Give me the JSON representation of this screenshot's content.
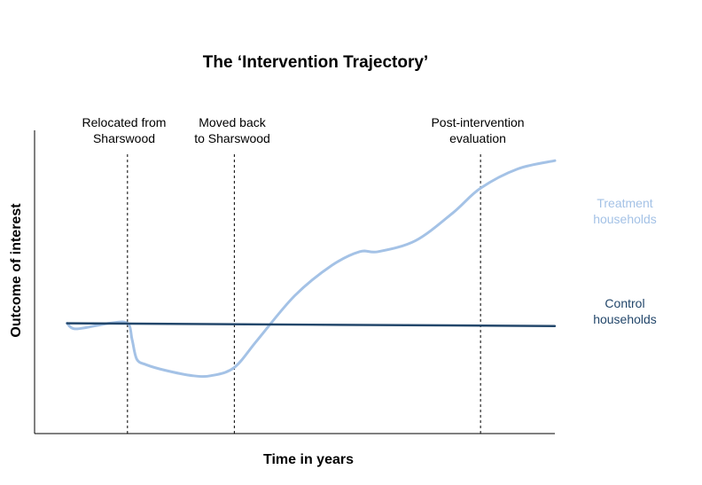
{
  "chart_data": {
    "type": "line",
    "title": "The ‘Intervention Trajectory’",
    "xlabel": "Time in years",
    "ylabel": "Outcome of interest",
    "grid": false,
    "legend": "right",
    "annotations": [
      {
        "label": "Relocated from\nSharswood",
        "x": 1.0
      },
      {
        "label": "Moved back\nto Sharswood",
        "x": 2.15
      },
      {
        "label": "Post-intervention\nevaluation",
        "x": 4.8
      }
    ],
    "series": [
      {
        "name": "Treatment\nhouseholds",
        "color": "#a4c2e6",
        "x": [
          0.35,
          0.45,
          0.8,
          1.0,
          1.05,
          1.1,
          1.2,
          1.4,
          1.7,
          1.9,
          2.15,
          2.4,
          2.8,
          3.2,
          3.5,
          3.7,
          4.1,
          4.5,
          4.8,
          5.2,
          5.6
        ],
        "y": [
          0.0,
          -0.1,
          0.0,
          0.0,
          -0.3,
          -0.65,
          -0.75,
          -0.85,
          -0.95,
          -0.95,
          -0.8,
          -0.3,
          0.5,
          1.05,
          1.3,
          1.3,
          1.5,
          2.0,
          2.45,
          2.8,
          2.95
        ]
      },
      {
        "name": "Control\nhouseholds",
        "color": "#23476b",
        "x": [
          0.35,
          5.6
        ],
        "y": [
          0.0,
          -0.05
        ]
      }
    ]
  }
}
